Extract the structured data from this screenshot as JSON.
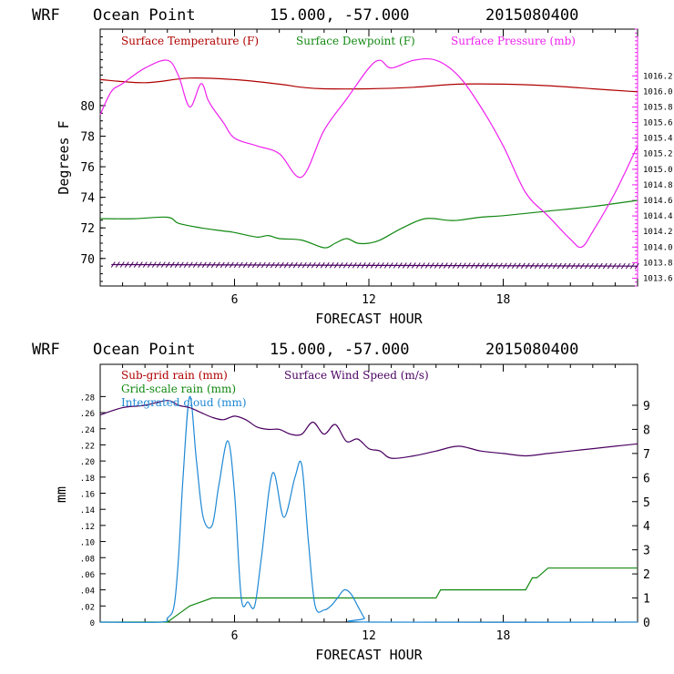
{
  "chart_data": [
    {
      "type": "line",
      "title": {
        "model": "WRF",
        "location": "Ocean Point",
        "coords": "15.000, -57.000",
        "date": "2015080400"
      },
      "xlabel": "FORECAST HOUR",
      "ylabel": "Degrees F",
      "xlim": [
        0,
        24
      ],
      "xticks": [
        6,
        12,
        18
      ],
      "ylim": [
        68.2,
        85
      ],
      "yticks": [
        70,
        72,
        74,
        76,
        78,
        80
      ],
      "y2lim": [
        1013.5,
        1016.8
      ],
      "y2ticks": [
        1013.6,
        1013.8,
        1014.0,
        1014.2,
        1014.4,
        1014.6,
        1014.8,
        1015.0,
        1015.2,
        1015.4,
        1015.6,
        1015.8,
        1016.0,
        1016.2
      ],
      "series": [
        {
          "name": "Surface Temperature (F)",
          "color": "#b00000",
          "axis": "left",
          "x": [
            0,
            2,
            4,
            6,
            8,
            9,
            10,
            12,
            14,
            16,
            18,
            20,
            22,
            24
          ],
          "values": [
            81.7,
            81.5,
            81.8,
            81.7,
            81.4,
            81.2,
            81.1,
            81.1,
            81.2,
            81.4,
            81.4,
            81.3,
            81.1,
            80.9
          ]
        },
        {
          "name": "Surface Dewpoint (F)",
          "color": "#118811",
          "axis": "left",
          "x": [
            0,
            1.5,
            3,
            3.5,
            4.5,
            5.5,
            6,
            7,
            7.5,
            8,
            9,
            10,
            10.5,
            11,
            11.5,
            12,
            12.5,
            13.5,
            14.5,
            15.5,
            16,
            17,
            18,
            20,
            22,
            24
          ],
          "values": [
            72.6,
            72.6,
            72.7,
            72.3,
            72.0,
            71.8,
            71.7,
            71.4,
            71.5,
            71.3,
            71.2,
            70.7,
            71.0,
            71.3,
            71.0,
            71.0,
            71.2,
            72.0,
            72.6,
            72.5,
            72.5,
            72.7,
            72.8,
            73.1,
            73.4,
            73.8
          ],
          "note": "curve interpolated through sample points"
        },
        {
          "name": "Surface Pressure (mb)",
          "color": "#ee22ee",
          "axis": "right",
          "x": [
            0,
            0.5,
            1,
            2,
            3,
            3.5,
            4,
            4.5,
            4.8,
            5,
            5.5,
            6,
            7,
            8,
            9,
            10,
            11,
            12,
            12.5,
            13,
            14,
            15,
            16,
            17,
            18,
            19,
            20,
            21,
            21.5,
            22,
            23,
            24
          ],
          "values": [
            1015.7,
            1016.0,
            1016.1,
            1016.3,
            1016.4,
            1016.2,
            1015.8,
            1016.1,
            1015.9,
            1015.8,
            1015.6,
            1015.4,
            1015.3,
            1015.2,
            1014.9,
            1015.5,
            1015.9,
            1016.3,
            1016.4,
            1016.3,
            1016.4,
            1016.4,
            1016.2,
            1015.8,
            1015.3,
            1014.7,
            1014.4,
            1014.1,
            1014.0,
            1014.2,
            1014.7,
            1015.3
          ]
        },
        {
          "name": "",
          "color": "#4a0060",
          "axis": "left",
          "x": [
            0.5,
            24
          ],
          "values": [
            69.6,
            69.5
          ],
          "style": "hatched"
        }
      ]
    },
    {
      "type": "line",
      "title": {
        "model": "WRF",
        "location": "Ocean Point",
        "coords": "15.000, -57.000",
        "date": "2015080400"
      },
      "xlabel": "FORECAST HOUR",
      "ylabel": "mm",
      "xlim": [
        0,
        24
      ],
      "xticks": [
        6,
        12,
        18
      ],
      "ylim": [
        0,
        0.32
      ],
      "yticks": [
        0,
        0.02,
        0.04,
        0.06,
        0.08,
        0.1,
        0.12,
        0.14,
        0.16,
        0.18,
        0.2,
        0.22,
        0.24,
        0.26,
        0.28
      ],
      "ytick_labels": [
        "0",
        ".02",
        ".04",
        ".06",
        ".08",
        ".10",
        ".12",
        ".14",
        ".16",
        ".18",
        ".20",
        ".22",
        ".24",
        ".26",
        ".28"
      ],
      "y2lim": [
        0,
        10.7
      ],
      "y2ticks": [
        0,
        1,
        2,
        3,
        4,
        5,
        6,
        7,
        8,
        9
      ],
      "series": [
        {
          "name": "Sub-grid rain (mm)",
          "color": "#b00000",
          "axis": "left",
          "x": [],
          "values": []
        },
        {
          "name": "Grid-scale rain (mm)",
          "color": "#118811",
          "axis": "left",
          "x": [
            0,
            3,
            3.5,
            4,
            4.5,
            5,
            15,
            15.2,
            19,
            19.3,
            19.5,
            20,
            24
          ],
          "values": [
            0,
            0,
            0.01,
            0.02,
            0.025,
            0.03,
            0.03,
            0.04,
            0.04,
            0.055,
            0.055,
            0.067,
            0.067
          ]
        },
        {
          "name": "Integrated cloud (mm)",
          "color": "#1e88d4",
          "axis": "left",
          "x": [
            0,
            2.7,
            3,
            3.3,
            3.5,
            3.7,
            4,
            4.3,
            4.6,
            5,
            5.3,
            5.7,
            6,
            6.3,
            6.6,
            6.9,
            7.2,
            7.7,
            8.2,
            8.7,
            9.0,
            9.3,
            9.6,
            10,
            10.3,
            10.6,
            10.9,
            11.2,
            11.5,
            11.8,
            12,
            24
          ],
          "values": [
            0,
            0,
            0.005,
            0.02,
            0.08,
            0.18,
            0.28,
            0.2,
            0.13,
            0.12,
            0.17,
            0.225,
            0.16,
            0.03,
            0.025,
            0.02,
            0.08,
            0.185,
            0.13,
            0.18,
            0.195,
            0.1,
            0.02,
            0.015,
            0.02,
            0.03,
            0.04,
            0.035,
            0.02,
            0.005,
            0,
            0
          ]
        },
        {
          "name": "Surface Wind Speed (m/s)",
          "color": "#4a0060",
          "axis": "right",
          "x": [
            0,
            1,
            2,
            3,
            3.5,
            4,
            4.5,
            5,
            5.5,
            6,
            6.5,
            7,
            7.5,
            8,
            8.5,
            9,
            9.5,
            10,
            10.5,
            11,
            11.5,
            12,
            12.5,
            13,
            14,
            15,
            16,
            17,
            18,
            19,
            20,
            21,
            22,
            23,
            24
          ],
          "values": [
            8.6,
            8.9,
            9.0,
            9.2,
            9.0,
            8.9,
            8.7,
            8.5,
            8.4,
            8.55,
            8.4,
            8.1,
            8.0,
            8.0,
            7.8,
            7.8,
            8.3,
            7.8,
            8.2,
            7.5,
            7.6,
            7.2,
            7.1,
            6.8,
            6.9,
            7.1,
            7.3,
            7.1,
            7.0,
            6.9,
            7.0,
            7.1,
            7.2,
            7.3,
            7.4
          ]
        }
      ]
    }
  ]
}
